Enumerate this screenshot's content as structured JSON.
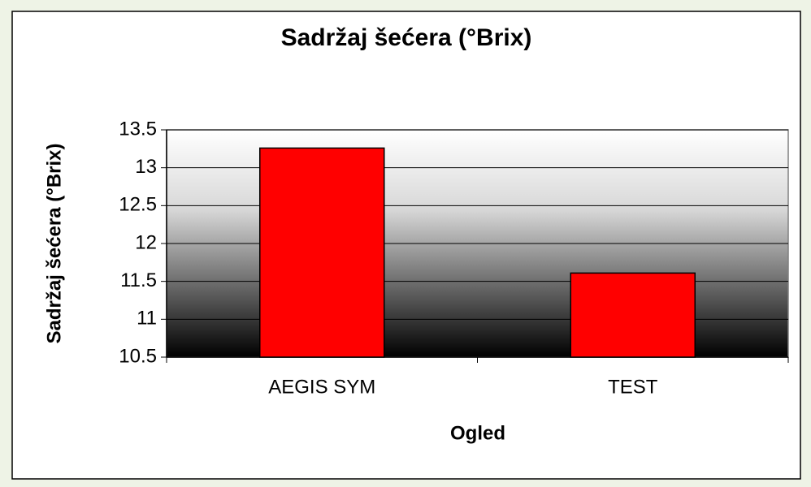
{
  "chart_data": {
    "type": "bar",
    "title": "Sadržaj šećera (°Brix)",
    "y_label": "Sadržaj šećera (°Brix)",
    "x_label": "Ogled",
    "categories": [
      "AEGIS SYM",
      "TEST"
    ],
    "values": [
      13.26,
      11.61
    ],
    "color": "#ff0000",
    "ylim": [
      10.5,
      13.5
    ],
    "yticks": [
      10.5,
      11,
      11.5,
      12,
      12.5,
      13,
      13.5
    ],
    "grid": true
  }
}
